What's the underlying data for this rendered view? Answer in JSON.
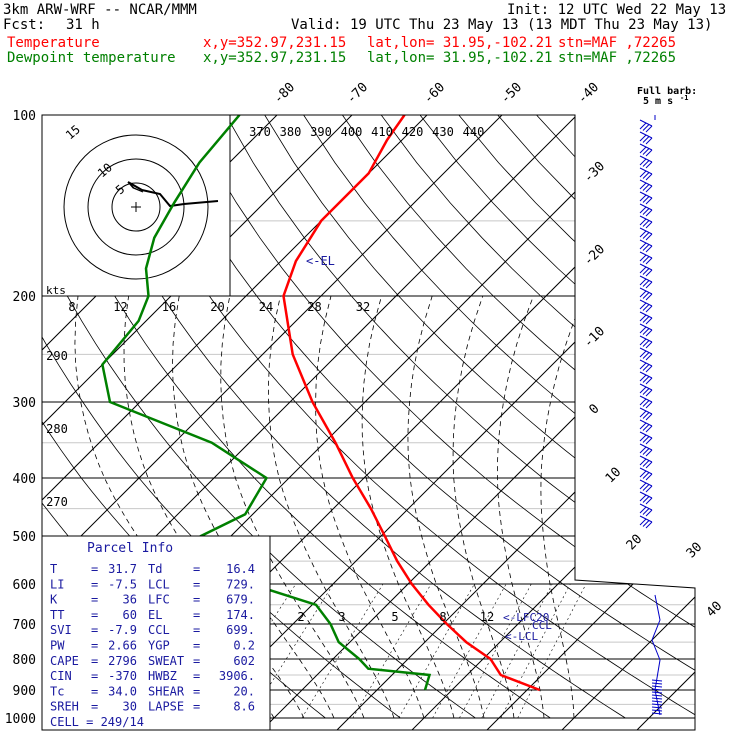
{
  "header": {
    "model": "3km ARW-WRF -- NCAR/MMM",
    "init": "Init: 12 UTC Wed 22 May 13",
    "fcst_label": "Fcst:",
    "fcst_value": "31 h",
    "valid": "Valid: 19 UTC Thu 23 May 13 (13 MDT Thu 23 May 13)",
    "temp_label": "Temperature",
    "dew_label": "Dewpoint temperature",
    "xy": "x,y=352.97,231.15",
    "latlon": "lat,lon= 31.95,-102.21",
    "stn": "stn=MAF ,72265"
  },
  "colors": {
    "temperature": "#ff0000",
    "dewpoint": "#008000",
    "param_text": "#1a1aa0",
    "barbs": "#0000c8"
  },
  "barb_legend": {
    "line1": "Full barb:",
    "line2": "5 m s"
  },
  "annotations": {
    "el": "<-EL",
    "lfc": "<-LFC20",
    "lcl": "<-LCL",
    "ccl": "CCL"
  },
  "hodograph": {
    "units": "kts",
    "rings": [
      "5",
      "10",
      "15"
    ]
  },
  "parcel_info": {
    "title": "Parcel Info",
    "rows": [
      {
        "k1": "T",
        "v1": "31.7",
        "k2": "Td",
        "v2": "16.4"
      },
      {
        "k1": "LI",
        "v1": "-7.5",
        "k2": "LCL",
        "v2": "729."
      },
      {
        "k1": "K",
        "v1": "36",
        "k2": "LFC",
        "v2": "679."
      },
      {
        "k1": "TT",
        "v1": "60",
        "k2": "EL",
        "v2": "174."
      },
      {
        "k1": "SVI",
        "v1": "-7.9",
        "k2": "CCL",
        "v2": "699."
      },
      {
        "k1": "PW",
        "v1": "2.66",
        "k2": "YGP",
        "v2": "0.2"
      },
      {
        "k1": "CAPE",
        "v1": "2796",
        "k2": "SWEAT",
        "v2": "602"
      },
      {
        "k1": "CIN",
        "v1": "-370",
        "k2": "HWBZ",
        "v2": "3906."
      },
      {
        "k1": "Tc",
        "v1": "34.0",
        "k2": "SHEAR",
        "v2": "20."
      },
      {
        "k1": "SREH",
        "v1": "30",
        "k2": "LAPSE",
        "v2": "8.6"
      }
    ],
    "cell": "CELL = 249/14"
  },
  "chart_data": {
    "type": "line",
    "pressure_levels": [
      "100",
      "200",
      "300",
      "400",
      "500",
      "600",
      "700",
      "800",
      "900",
      "1000"
    ],
    "isotherm_labels": [
      "-80",
      "-70",
      "-60",
      "-50",
      "-40",
      "-30",
      "-20",
      "-10",
      "0",
      "10",
      "20",
      "30",
      "40"
    ],
    "theta_labels": [
      "370",
      "380",
      "390",
      "400",
      "410",
      "420",
      "430",
      "440"
    ],
    "mixing_top_labels": [
      "8",
      "12",
      "16",
      "20",
      "24",
      "28",
      "32"
    ],
    "mixing_low_labels": [
      "2",
      "3",
      "5",
      "8",
      "12"
    ],
    "theta_left_labels": [
      "290",
      "280",
      "270"
    ],
    "series": [
      {
        "name": "Temperature",
        "points": [
          {
            "p": 900,
            "t": 31.7
          },
          {
            "p": 850,
            "t": 24.5
          },
          {
            "p": 800,
            "t": 21
          },
          {
            "p": 750,
            "t": 15.5
          },
          {
            "p": 700,
            "t": 10.5
          },
          {
            "p": 650,
            "t": 5.5
          },
          {
            "p": 600,
            "t": 0.5
          },
          {
            "p": 550,
            "t": -4.5
          },
          {
            "p": 500,
            "t": -9.5
          },
          {
            "p": 450,
            "t": -15
          },
          {
            "p": 400,
            "t": -21.5
          },
          {
            "p": 350,
            "t": -28.5
          },
          {
            "p": 300,
            "t": -37
          },
          {
            "p": 250,
            "t": -46
          },
          {
            "p": 200,
            "t": -55
          },
          {
            "p": 175,
            "t": -58
          },
          {
            "p": 150,
            "t": -60
          },
          {
            "p": 125,
            "t": -60
          },
          {
            "p": 110,
            "t": -62
          },
          {
            "p": 100,
            "t": -63
          }
        ]
      },
      {
        "name": "Dewpoint temperature",
        "points": [
          {
            "p": 900,
            "t": 16.4
          },
          {
            "p": 850,
            "t": 15
          },
          {
            "p": 830,
            "t": 6
          },
          {
            "p": 800,
            "t": 3.5
          },
          {
            "p": 750,
            "t": -1.5
          },
          {
            "p": 700,
            "t": -5
          },
          {
            "p": 650,
            "t": -9.5
          },
          {
            "p": 600,
            "t": -21
          },
          {
            "p": 550,
            "t": -30
          },
          {
            "p": 500,
            "t": -34
          },
          {
            "p": 460,
            "t": -31
          },
          {
            "p": 400,
            "t": -33
          },
          {
            "p": 350,
            "t": -45
          },
          {
            "p": 300,
            "t": -64
          },
          {
            "p": 260,
            "t": -70
          },
          {
            "p": 220,
            "t": -71
          },
          {
            "p": 200,
            "t": -73
          },
          {
            "p": 180,
            "t": -77
          },
          {
            "p": 160,
            "t": -80
          },
          {
            "p": 140,
            "t": -82
          },
          {
            "p": 120,
            "t": -84
          },
          {
            "p": 100,
            "t": -85
          }
        ]
      }
    ]
  }
}
